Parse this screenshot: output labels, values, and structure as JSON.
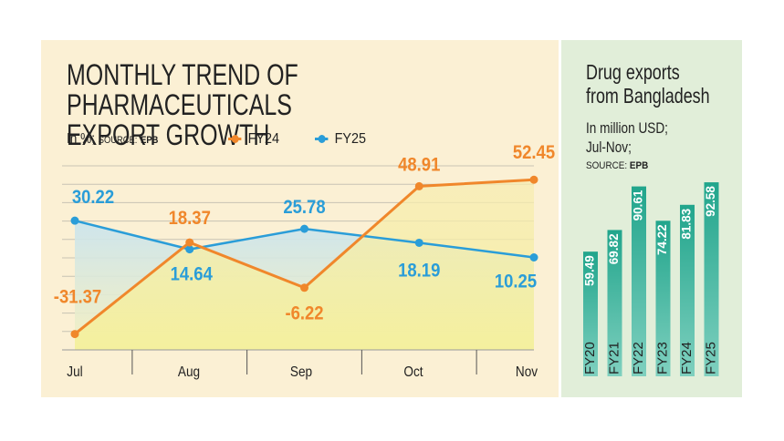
{
  "left_chart": {
    "title_line1": "MONTHLY TREND OF PHARMACEUTICALS",
    "title_line2": "EXPORT GROWTH",
    "unit_label": "In %;",
    "source_label": "SOURCE:",
    "source_name": "EPB"
  },
  "right_chart": {
    "title_line1": "Drug exports",
    "title_line2": "from Bangladesh",
    "subtitle_line1": "In million USD;",
    "subtitle_line2": "Jul-Nov;",
    "source_label": "SOURCE:",
    "source_name": "EPB"
  },
  "colors": {
    "fy24": "#f0872b",
    "fy25": "#2a9dd8",
    "bar": "#2eae97",
    "left_bg": "#fbf0d4",
    "right_bg": "#e1eed9"
  },
  "chart_data": [
    {
      "type": "line",
      "title": "MONTHLY TREND OF PHARMACEUTICALS EXPORT GROWTH",
      "ylabel": "In %",
      "categories": [
        "Jul",
        "Aug",
        "Sep",
        "Oct",
        "Nov"
      ],
      "ylim": [
        -40,
        60
      ],
      "grid": true,
      "legend_position": "top",
      "series": [
        {
          "name": "FY24",
          "values": [
            -31.37,
            18.37,
            -6.22,
            48.91,
            52.45
          ],
          "labels": [
            "-31.37",
            "18.37",
            "-6.22",
            "48.91",
            "52.45"
          ]
        },
        {
          "name": "FY25",
          "values": [
            30.22,
            14.64,
            25.78,
            18.19,
            10.25
          ],
          "labels": [
            "30.22",
            "14.64",
            "25.78",
            "18.19",
            "10.25"
          ]
        }
      ]
    },
    {
      "type": "bar",
      "title": "Drug exports from Bangladesh",
      "ylabel": "In million USD; Jul-Nov",
      "categories": [
        "FY20",
        "FY21",
        "FY22",
        "FY23",
        "FY24",
        "FY25"
      ],
      "values": [
        59.49,
        69.82,
        90.61,
        74.22,
        81.83,
        92.58
      ],
      "labels": [
        "59.49",
        "69.82",
        "90.61",
        "74.22",
        "81.83",
        "92.58"
      ],
      "ylim": [
        0,
        100
      ]
    }
  ]
}
